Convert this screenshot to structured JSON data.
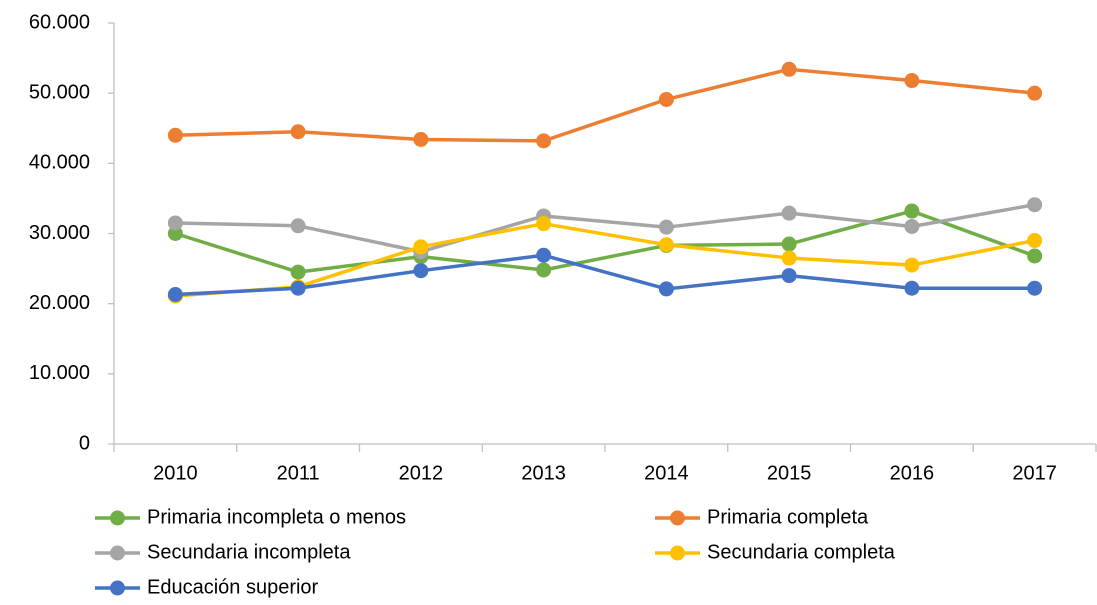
{
  "chart_data": {
    "type": "line",
    "categories": [
      "2010",
      "2011",
      "2012",
      "2013",
      "2014",
      "2015",
      "2016",
      "2017"
    ],
    "series": [
      {
        "name": "Primaria incompleta o menos",
        "color": "#70ad47",
        "values": [
          30000,
          24500,
          26700,
          24800,
          28300,
          28500,
          33200,
          26800
        ]
      },
      {
        "name": "Primaria completa",
        "color": "#ed7d31",
        "values": [
          44000,
          44500,
          43400,
          43200,
          49100,
          53400,
          51800,
          50000
        ]
      },
      {
        "name": "Secundaria incompleta",
        "color": "#a5a5a5",
        "values": [
          31500,
          31100,
          27400,
          32500,
          30900,
          32900,
          31000,
          34100
        ]
      },
      {
        "name": "Secundaria completa",
        "color": "#ffc000",
        "values": [
          21100,
          22400,
          28100,
          31400,
          28400,
          26500,
          25500,
          29000
        ]
      },
      {
        "name": "Educación superior",
        "color": "#4472c4",
        "values": [
          21300,
          22200,
          24700,
          26900,
          22100,
          24000,
          22200,
          22200
        ]
      }
    ],
    "ylim": [
      0,
      60000
    ],
    "yticks": [
      0,
      {
        "value": 10000,
        "label": "10.000"
      },
      {
        "value": 20000,
        "label": "20.000"
      },
      {
        "value": 30000,
        "label": "30.000"
      },
      {
        "value": 40000,
        "label": "40.000"
      },
      {
        "value": 50000,
        "label": "50.000"
      },
      {
        "value": 60000,
        "label": "60.000"
      }
    ],
    "grid": false
  }
}
